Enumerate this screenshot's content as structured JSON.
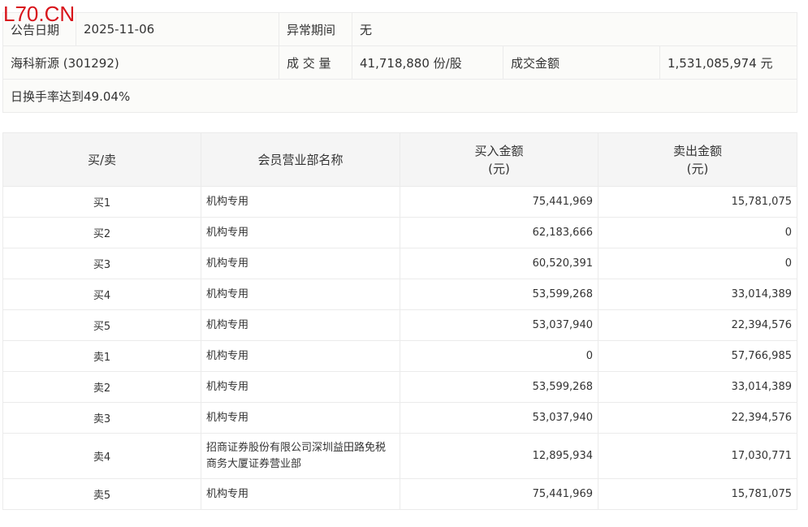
{
  "logo": "L70.CN",
  "info": {
    "date_label": "公告日期",
    "date": "2025-11-06",
    "period_label": "异常期间",
    "period": "无",
    "stock": "海科新源 (301292)",
    "volume_label": "成 交 量",
    "volume": "41,718,880 份/股",
    "amount_label": "成交金额",
    "amount": "1,531,085,974 元",
    "reason": "日换手率达到49.04%"
  },
  "table": {
    "headers": [
      "买/卖",
      "会员营业部名称",
      "买入金额\n(元)",
      "卖出金额\n(元)"
    ],
    "rows": [
      {
        "side": "买1",
        "name": "机构专用",
        "buy": "75,441,969",
        "sell": "15,781,075"
      },
      {
        "side": "买2",
        "name": "机构专用",
        "buy": "62,183,666",
        "sell": "0"
      },
      {
        "side": "买3",
        "name": "机构专用",
        "buy": "60,520,391",
        "sell": "0"
      },
      {
        "side": "买4",
        "name": "机构专用",
        "buy": "53,599,268",
        "sell": "33,014,389"
      },
      {
        "side": "买5",
        "name": "机构专用",
        "buy": "53,037,940",
        "sell": "22,394,576"
      },
      {
        "side": "卖1",
        "name": "机构专用",
        "buy": "0",
        "sell": "57,766,985"
      },
      {
        "side": "卖2",
        "name": "机构专用",
        "buy": "53,599,268",
        "sell": "33,014,389"
      },
      {
        "side": "卖3",
        "name": "机构专用",
        "buy": "53,037,940",
        "sell": "22,394,576"
      },
      {
        "side": "卖4",
        "name": "招商证券股份有限公司深圳益田路免税商务大厦证券营业部",
        "buy": "12,895,934",
        "sell": "17,030,771"
      },
      {
        "side": "卖5",
        "name": "机构专用",
        "buy": "75,441,969",
        "sell": "15,781,075"
      }
    ]
  }
}
